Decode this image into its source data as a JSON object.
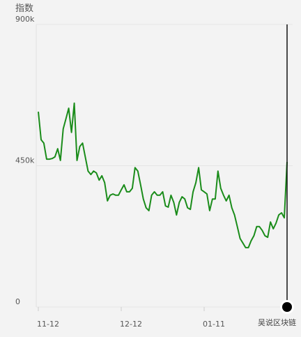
{
  "chart_data": {
    "type": "line",
    "y_label": "指数",
    "watermark": "吴说区块链",
    "categories": [
      "11-12",
      null,
      null,
      null,
      null,
      null,
      null,
      null,
      null,
      null,
      null,
      null,
      null,
      null,
      null,
      null,
      null,
      null,
      null,
      null,
      null,
      null,
      null,
      null,
      null,
      null,
      null,
      null,
      null,
      null,
      "12-12",
      null,
      null,
      null,
      null,
      null,
      null,
      null,
      null,
      null,
      null,
      null,
      null,
      null,
      null,
      null,
      null,
      null,
      null,
      null,
      null,
      null,
      null,
      null,
      null,
      null,
      null,
      null,
      null,
      null,
      "01-11",
      null,
      null,
      null,
      null,
      null,
      null,
      null,
      null,
      null,
      null,
      null,
      null,
      null,
      null,
      null,
      null,
      null,
      null,
      null,
      null,
      null,
      null,
      null,
      null,
      null,
      null,
      null,
      null,
      null,
      null
    ],
    "series": [
      {
        "color": "#1a8c1a",
        "values": [
          622000,
          533000,
          522000,
          471000,
          471000,
          473000,
          478000,
          504000,
          467000,
          567000,
          600000,
          633000,
          556000,
          649000,
          467000,
          511000,
          522000,
          478000,
          433000,
          422000,
          433000,
          427000,
          404000,
          418000,
          396000,
          338000,
          356000,
          360000,
          356000,
          356000,
          373000,
          389000,
          367000,
          367000,
          378000,
          444000,
          433000,
          389000,
          344000,
          316000,
          307000,
          356000,
          367000,
          356000,
          356000,
          367000,
          322000,
          318000,
          356000,
          333000,
          293000,
          333000,
          351000,
          344000,
          316000,
          311000,
          367000,
          396000,
          444000,
          373000,
          367000,
          360000,
          307000,
          344000,
          344000,
          433000,
          378000,
          356000,
          338000,
          356000,
          316000,
          293000,
          256000,
          218000,
          204000,
          189000,
          189000,
          211000,
          227000,
          256000,
          256000,
          244000,
          227000,
          222000,
          271000,
          249000,
          267000,
          293000,
          300000,
          284000,
          462000
        ]
      }
    ],
    "ylim": [
      0,
      900000
    ],
    "yticks": [
      0,
      {
        "value": 450000,
        "label": "450k"
      },
      {
        "value": 900000,
        "label": "900k"
      }
    ],
    "grid": true
  }
}
